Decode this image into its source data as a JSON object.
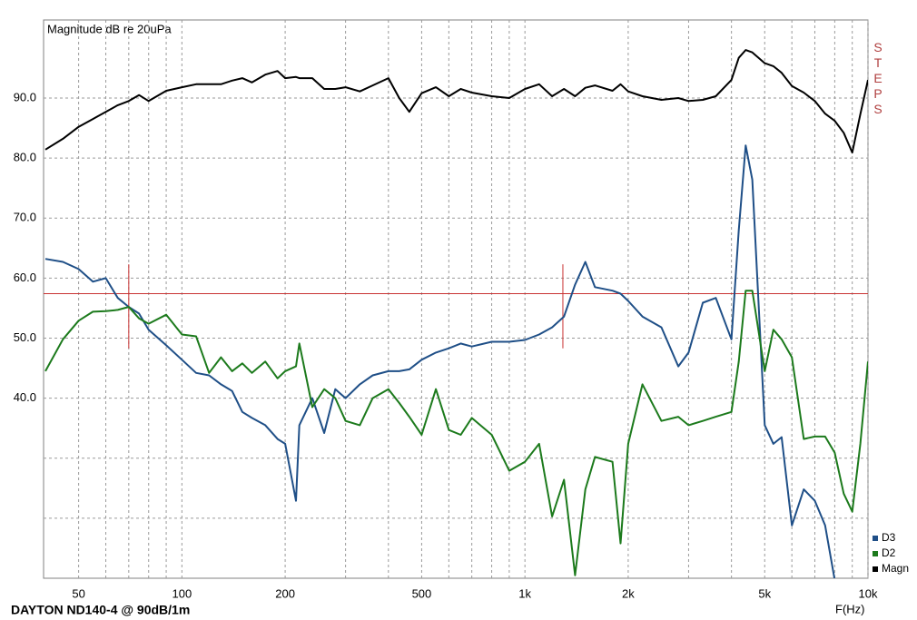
{
  "chart_data": {
    "type": "line",
    "title": "Magnitude dB re 20uPa",
    "side_label": "STEPS",
    "side_label_color": "#b04040",
    "footer": "DAYTON ND140-4 @ 90dB/1m",
    "x_label": "F(Hz)",
    "xscale": "log",
    "grid": true,
    "xlim": [
      40,
      10000
    ],
    "ylim": [
      10,
      103
    ],
    "xticks": [
      50,
      100,
      200,
      500,
      {
        "value": 1000,
        "label": "1k"
      },
      {
        "value": 2000,
        "label": "2k"
      },
      {
        "value": 5000,
        "label": "5k"
      },
      {
        "value": 10000,
        "label": "10k"
      }
    ],
    "xminor": [
      60,
      70,
      80,
      90,
      300,
      400,
      600,
      700,
      800,
      900,
      3000,
      4000,
      6000,
      7000,
      8000,
      9000
    ],
    "yticks": [
      {
        "value": 40,
        "label": "40.0"
      },
      {
        "value": 50,
        "label": "50.0"
      },
      {
        "value": 60,
        "label": "60.0"
      },
      {
        "value": 70,
        "label": "70.0"
      },
      {
        "value": 80,
        "label": "80.0"
      },
      {
        "value": 90,
        "label": "90.0"
      }
    ],
    "yminor": [
      20,
      30
    ],
    "legend": "bottom-right",
    "cursor": {
      "y": 57.4,
      "x": [
        70,
        1290
      ],
      "yspan": [
        48.3,
        62.3
      ],
      "color": "#c83232"
    },
    "x": [
      40,
      45,
      50,
      55,
      60,
      65,
      70,
      75,
      80,
      90,
      100,
      110,
      120,
      130,
      140,
      150,
      160,
      175,
      190,
      200,
      215,
      220,
      240,
      260,
      280,
      300,
      330,
      360,
      400,
      430,
      460,
      500,
      550,
      600,
      650,
      700,
      800,
      900,
      1000,
      1100,
      1200,
      1300,
      1400,
      1500,
      1600,
      1800,
      1900,
      2000,
      2200,
      2500,
      2800,
      3000,
      3300,
      3600,
      4000,
      4200,
      4400,
      4600,
      5000,
      5300,
      5600,
      6000,
      6500,
      7000,
      7500,
      8000,
      8500,
      9000,
      9500,
      10000
    ],
    "series": [
      {
        "name": "D3",
        "color": "#1f4f87",
        "values": [
          63.2,
          62.7,
          61.5,
          59.4,
          60,
          56.7,
          55.2,
          54.1,
          51.4,
          48.8,
          46.4,
          44.2,
          43.8,
          42.3,
          41.2,
          37.7,
          36.7,
          35.5,
          33.2,
          32.4,
          22.9,
          35.5,
          40,
          34.2,
          41.5,
          40,
          42.3,
          43.8,
          44.5,
          44.5,
          44.8,
          46.4,
          47.6,
          48.3,
          49.1,
          48.6,
          49.4,
          49.4,
          49.7,
          50.6,
          51.8,
          53.6,
          58.9,
          62.7,
          58.5,
          57.9,
          57.4,
          56.2,
          53.6,
          51.8,
          45.3,
          47.6,
          55.9,
          56.7,
          49.8,
          68,
          82.1,
          76.4,
          35.5,
          32.4,
          33.5,
          18.8,
          24.8,
          22.9,
          18.8,
          9.7,
          null,
          null,
          null,
          null
        ]
      },
      {
        "name": "D2",
        "color": "#1c7a1c",
        "values": [
          44.5,
          49.8,
          52.9,
          54.4,
          54.5,
          54.7,
          55.2,
          53.3,
          52.4,
          53.9,
          50.6,
          50.3,
          44.2,
          46.8,
          44.5,
          45.8,
          44.2,
          46.1,
          43.3,
          44.5,
          45.3,
          49.1,
          38.5,
          41.5,
          40,
          36.2,
          35.5,
          40,
          41.5,
          39.2,
          36.9,
          33.9,
          41.5,
          34.7,
          33.9,
          36.7,
          33.9,
          27.9,
          29.4,
          32.4,
          20.3,
          26.4,
          10.5,
          24.8,
          30.2,
          29.4,
          15.8,
          32.4,
          42.3,
          36.2,
          36.9,
          35.5,
          36.2,
          36.9,
          37.7,
          46.1,
          57.9,
          57.9,
          44.5,
          51.4,
          49.8,
          46.8,
          33.2,
          33.6,
          33.6,
          30.9,
          24.1,
          21.1,
          32.4,
          46.1
        ]
      },
      {
        "name": "Magn",
        "color": "#000000",
        "values": [
          81.4,
          83.2,
          85.2,
          86.5,
          87.7,
          88.8,
          89.5,
          90.5,
          89.5,
          91.2,
          91.8,
          92.3,
          92.3,
          92.3,
          92.9,
          93.3,
          92.6,
          93.9,
          94.5,
          93.3,
          93.5,
          93.3,
          93.3,
          91.5,
          91.5,
          91.8,
          91.1,
          92.1,
          93.3,
          90,
          87.7,
          90.8,
          91.8,
          90.3,
          91.5,
          90.9,
          90.3,
          90,
          91.5,
          92.3,
          90.3,
          91.5,
          90.3,
          91.7,
          92.1,
          91.2,
          92.3,
          91.1,
          90.3,
          89.7,
          90,
          89.5,
          89.7,
          90.3,
          93,
          96.7,
          98,
          97.6,
          95.8,
          95.3,
          94.2,
          92,
          90.9,
          89.5,
          87.4,
          86.2,
          84.2,
          80.9,
          87.3,
          93
        ]
      }
    ]
  }
}
